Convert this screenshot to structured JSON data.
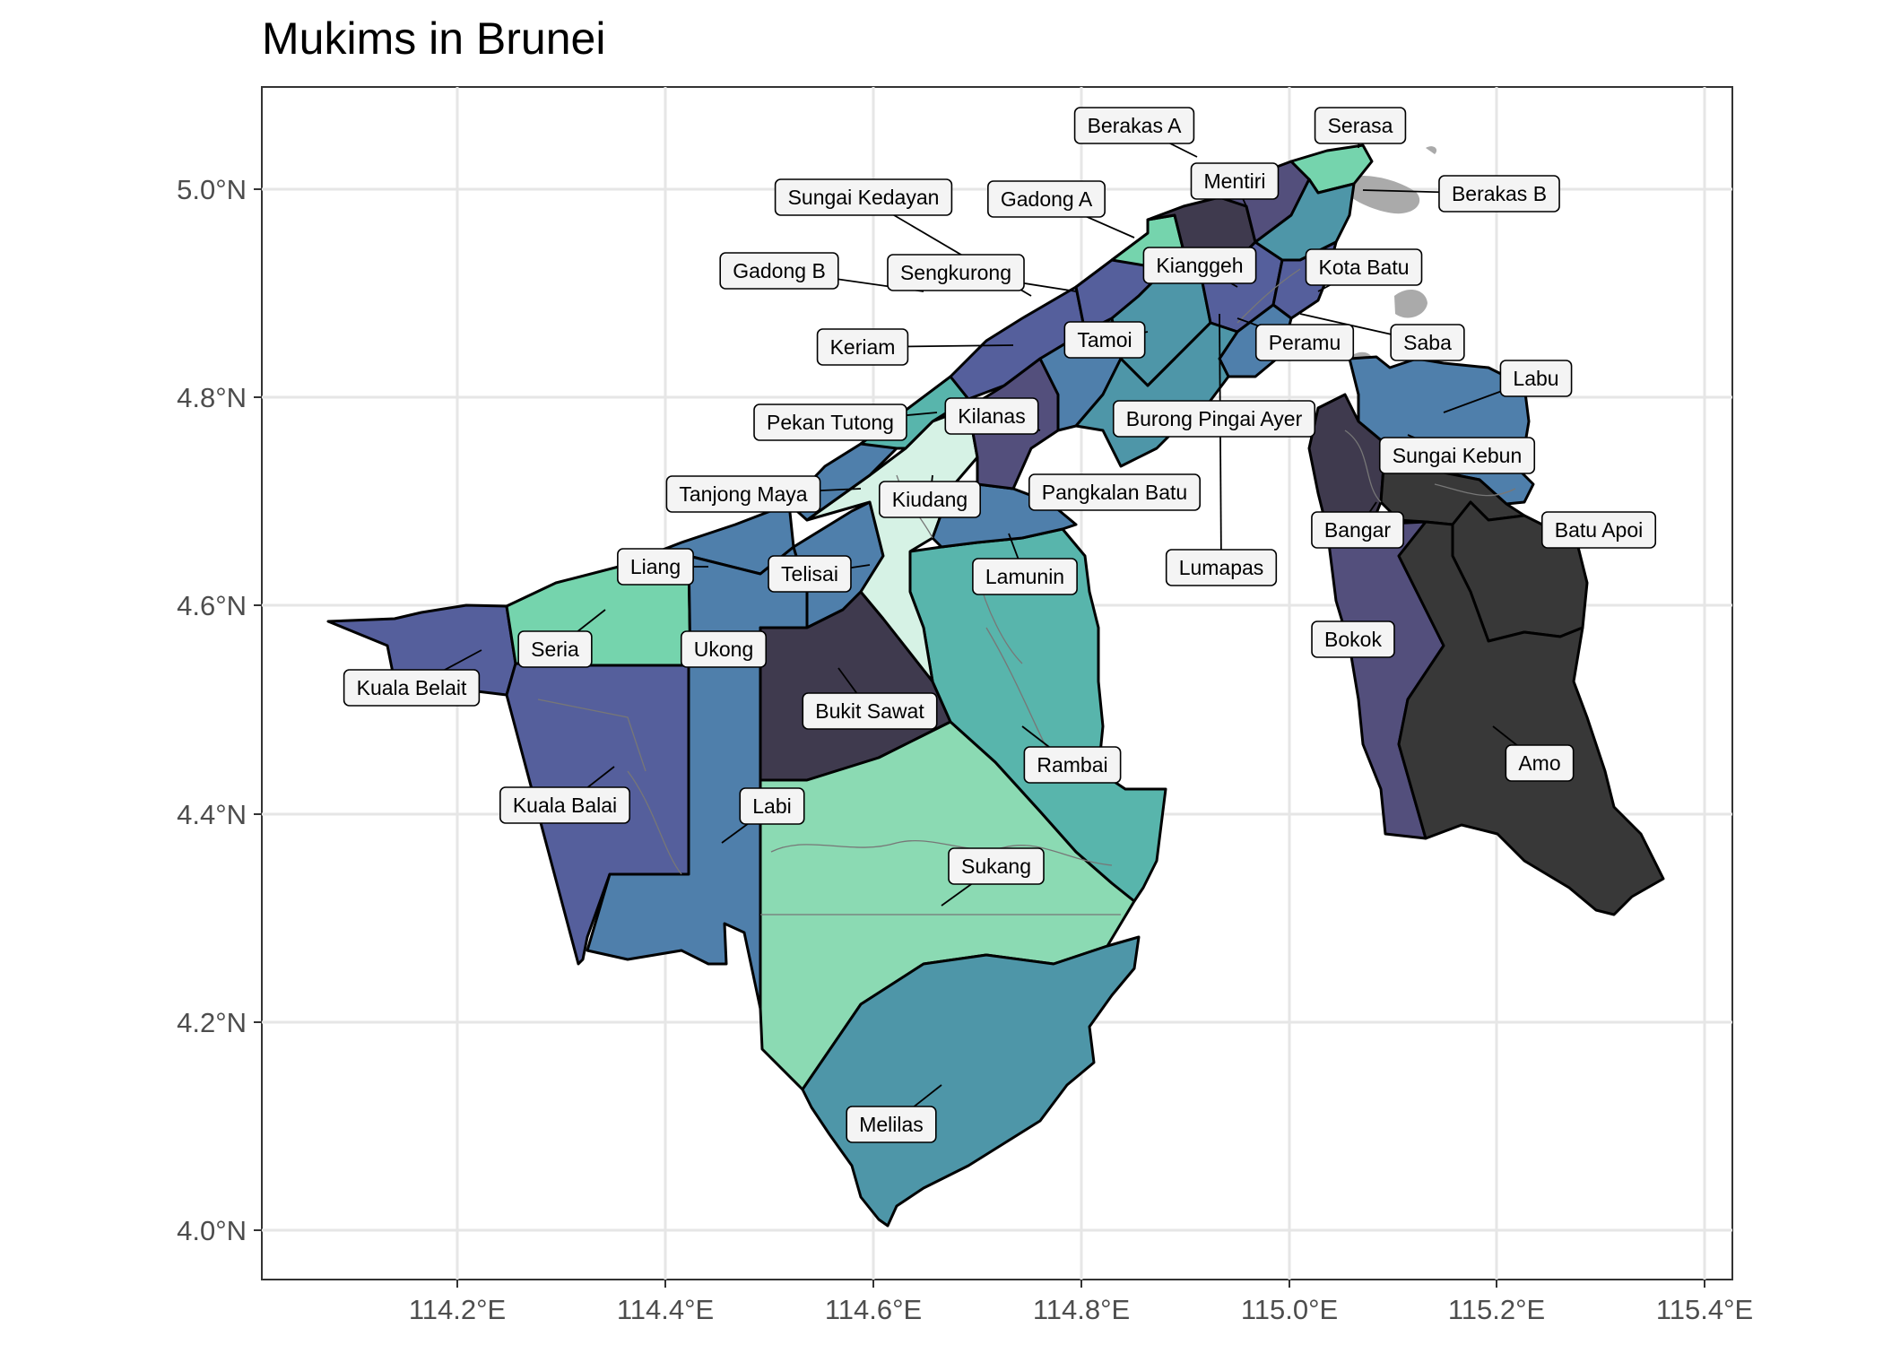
{
  "title": "Mukims in Brunei",
  "map": {
    "x_ticks": [
      "114.2°E",
      "114.4°E",
      "114.6°E",
      "114.8°E",
      "115.0°E",
      "115.2°E",
      "115.4°E"
    ],
    "y_ticks": [
      "5.0°N",
      "4.8°N",
      "4.6°N",
      "4.4°N",
      "4.2°N",
      "4.0°N"
    ],
    "grid": true,
    "palette": {
      "deep": "#3f3a4e",
      "purple": "#534f7c",
      "indigo": "#555f9c",
      "blue": "#4f7fab",
      "teal": "#4e96a8",
      "aqua": "#58b5ac",
      "mint": "#75d4ad",
      "light_mint": "#8bdab3",
      "pale": "#d6f2e5",
      "charcoal": "#383838",
      "islands": "#aaaaaa"
    }
  },
  "labels": [
    {
      "name": "Berakas A"
    },
    {
      "name": "Serasa"
    },
    {
      "name": "Mentiri"
    },
    {
      "name": "Berakas B"
    },
    {
      "name": "Sungai Kedayan"
    },
    {
      "name": "Gadong A"
    },
    {
      "name": "Kianggeh"
    },
    {
      "name": "Kota Batu"
    },
    {
      "name": "Gadong B"
    },
    {
      "name": "Sengkurong"
    },
    {
      "name": "Tamoi"
    },
    {
      "name": "Saba"
    },
    {
      "name": "Peramu"
    },
    {
      "name": "Keriam"
    },
    {
      "name": "Labu"
    },
    {
      "name": "Kilanas"
    },
    {
      "name": "Burong Pingai Ayer"
    },
    {
      "name": "Pekan Tutong"
    },
    {
      "name": "Sungai Kebun"
    },
    {
      "name": "Tanjong Maya"
    },
    {
      "name": "Kiudang"
    },
    {
      "name": "Pangkalan Batu"
    },
    {
      "name": "Bangar"
    },
    {
      "name": "Batu Apoi"
    },
    {
      "name": "Liang"
    },
    {
      "name": "Telisai"
    },
    {
      "name": "Lamunin"
    },
    {
      "name": "Lumapas"
    },
    {
      "name": "Seria"
    },
    {
      "name": "Ukong"
    },
    {
      "name": "Bokok"
    },
    {
      "name": "Kuala Belait"
    },
    {
      "name": "Bukit Sawat"
    },
    {
      "name": "Rambai"
    },
    {
      "name": "Amo"
    },
    {
      "name": "Kuala Balai"
    },
    {
      "name": "Labi"
    },
    {
      "name": "Sukang"
    },
    {
      "name": "Melilas"
    }
  ]
}
